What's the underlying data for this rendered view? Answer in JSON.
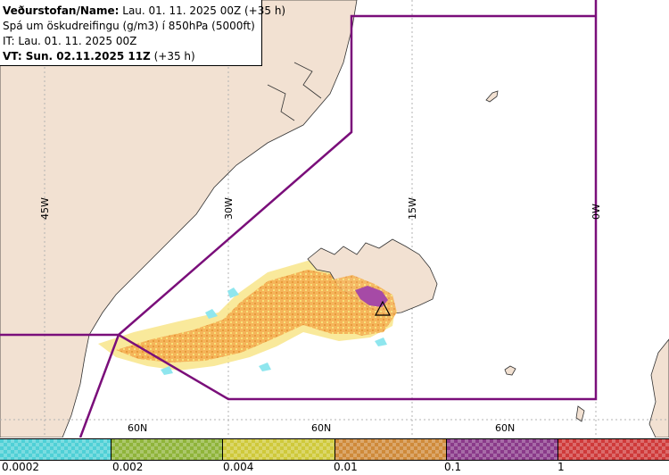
{
  "header": {
    "line1_label": "Veðurstofan/Name:",
    "line1_value": "Lau. 01. 11. 2025 00Z (+35 h)",
    "line2": "Spá um öskudreifingu (g/m3) í 850hPa (5000ft)",
    "line3": "IT: Lau. 01. 11. 2025 00Z",
    "line4_label": "VT: Sun. 02.11.2025 11Z",
    "line4_value": "(+35 h)"
  },
  "map": {
    "meridian_labels": [
      "45W",
      "30W",
      "15W",
      "0W"
    ],
    "parallel_labels": [
      "60N",
      "60N",
      "60N"
    ],
    "colors": {
      "land": "#f2e1d2",
      "sea": "#ffffff",
      "grid": "#b3b3b3",
      "boundary": "#7a0e7a",
      "ash_orange": "#f5b45a",
      "ash_yellow": "#f7e27a",
      "ash_cyan": "#8fe6ee",
      "ash_purple": "#a64aa6"
    },
    "volcano_icon": "triangle-volcano-icon"
  },
  "legend": {
    "ticks": [
      "0.0002",
      "0.002",
      "0.004",
      "0.01",
      "0.1",
      "1"
    ],
    "swatches": [
      {
        "color": "#4fd0d6"
      },
      {
        "color": "#8fb43a"
      },
      {
        "color": "#cfc93a"
      },
      {
        "color": "#cf8a3a"
      },
      {
        "color": "#8a3a8a"
      },
      {
        "color": "#cf3a3a"
      }
    ]
  }
}
